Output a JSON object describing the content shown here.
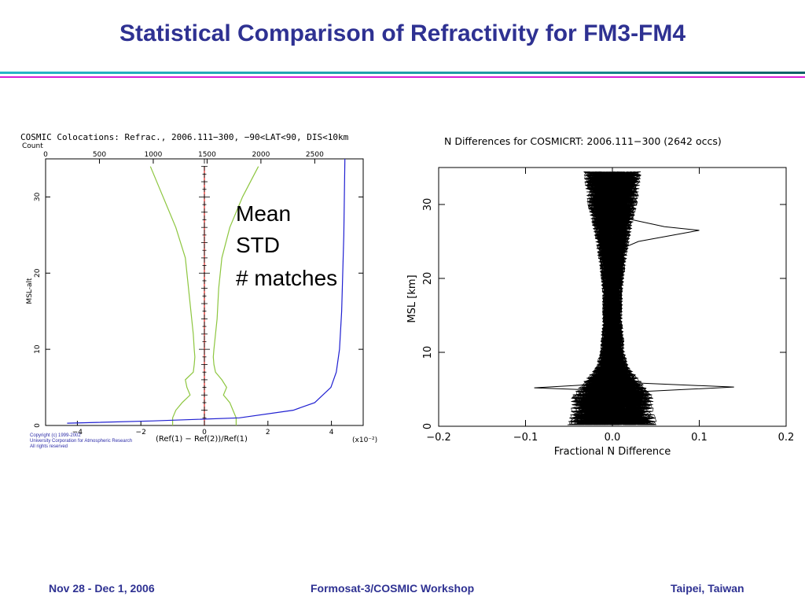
{
  "slide": {
    "title": "Statistical Comparison of Refractivity for FM3-FM4",
    "footer": {
      "left": "Nov 28 - Dec 1, 2006",
      "center": "Formosat-3/COSMIC Workshop",
      "right": "Taipei, Taiwan"
    },
    "colors": {
      "title": "#2e3192",
      "mean": "#e0201a",
      "std": "#8dc63f",
      "matches": "#1f1fd1"
    }
  },
  "legend": {
    "mean": "Mean",
    "std": "STD",
    "matches": "# matches"
  },
  "copyright": [
    "Copyright (c) 1999-2002",
    "University Corporation for Atmospheric Research",
    "All rights reserved"
  ],
  "chart_data": [
    {
      "type": "line",
      "title": "COSMIC Colocations: Refrac., 2006.111−300, −90<LAT<90, DIS<10km",
      "top_axis_label": "Count",
      "top_ticks": [
        "0",
        "500",
        "1000",
        "1500",
        "2000",
        "2500"
      ],
      "xlabel": "(Ref(1) − Ref(2))/Ref(1)",
      "x_scale": "(x10⁻²)",
      "ylabel": "MSL-alt",
      "x_ticks": [
        "−4",
        "−2",
        "0",
        "2",
        "4"
      ],
      "y_ticks": [
        "0",
        "10",
        "20",
        "30"
      ],
      "xlim": [
        -5,
        5
      ],
      "ylim": [
        0,
        35
      ],
      "countlim": [
        0,
        2950
      ],
      "series": [
        {
          "name": "Mean",
          "y": [
            0,
            1,
            2,
            3,
            4,
            5,
            6,
            8,
            10,
            14,
            18,
            22,
            26,
            30,
            34
          ],
          "x": [
            0.0,
            0.0,
            0.0,
            0.0,
            0.0,
            0.0,
            0.0,
            0.0,
            0.0,
            0.0,
            0.0,
            0.0,
            0.0,
            0.0,
            0.0
          ]
        },
        {
          "name": "STD (right)",
          "y": [
            0,
            1,
            2,
            3,
            4,
            5,
            6,
            7,
            8,
            9,
            10,
            12,
            14,
            18,
            22,
            26,
            30,
            34
          ],
          "x": [
            1.0,
            1.0,
            0.9,
            0.8,
            0.6,
            0.7,
            0.55,
            0.35,
            0.3,
            0.28,
            0.3,
            0.35,
            0.4,
            0.45,
            0.55,
            0.8,
            1.2,
            1.7
          ]
        },
        {
          "name": "STD (left)",
          "y": [
            0,
            1,
            2,
            3,
            4,
            5,
            6,
            7,
            8,
            9,
            10,
            12,
            14,
            18,
            22,
            26,
            30,
            34
          ],
          "x": [
            -1.0,
            -1.0,
            -0.9,
            -0.7,
            -0.45,
            -0.55,
            -0.6,
            -0.35,
            -0.32,
            -0.3,
            -0.32,
            -0.35,
            -0.4,
            -0.5,
            -0.6,
            -0.9,
            -1.3,
            -1.7
          ]
        },
        {
          "name": "# matches",
          "y": [
            0.3,
            0.6,
            1,
            2,
            3,
            5,
            7,
            10,
            15,
            20,
            25,
            30,
            35
          ],
          "count": [
            200,
            1000,
            1800,
            2300,
            2500,
            2650,
            2700,
            2730,
            2750,
            2760,
            2770,
            2775,
            2780
          ]
        }
      ]
    },
    {
      "type": "line",
      "title": "N Differences for COSMICRT: 2006.111−300 (2642 occs)",
      "xlabel": "Fractional N Difference",
      "ylabel": "MSL [km]",
      "x_ticks": [
        "−0.2",
        "−0.1",
        "0.0",
        "0.1",
        "0.2"
      ],
      "y_ticks": [
        "0",
        "10",
        "20",
        "30"
      ],
      "xlim": [
        -0.2,
        0.2
      ],
      "ylim": [
        0,
        35
      ],
      "occultations": 2642,
      "envelope": {
        "y": [
          0,
          2,
          4,
          6,
          8,
          10,
          14,
          18,
          22,
          26,
          30,
          34
        ],
        "half_width": [
          0.055,
          0.05,
          0.05,
          0.035,
          0.02,
          0.015,
          0.012,
          0.012,
          0.016,
          0.022,
          0.03,
          0.035
        ]
      },
      "outliers": [
        {
          "y": [
            24,
            25,
            26.5,
            27,
            28
          ],
          "x": [
            0.01,
            0.03,
            0.1,
            0.06,
            0.02
          ]
        },
        {
          "y": [
            4.5,
            5.3,
            6.0
          ],
          "x": [
            0.0,
            0.14,
            0.0
          ]
        },
        {
          "y": [
            4.8,
            5.2,
            5.8
          ],
          "x": [
            0.0,
            -0.09,
            0.0
          ]
        }
      ]
    }
  ]
}
